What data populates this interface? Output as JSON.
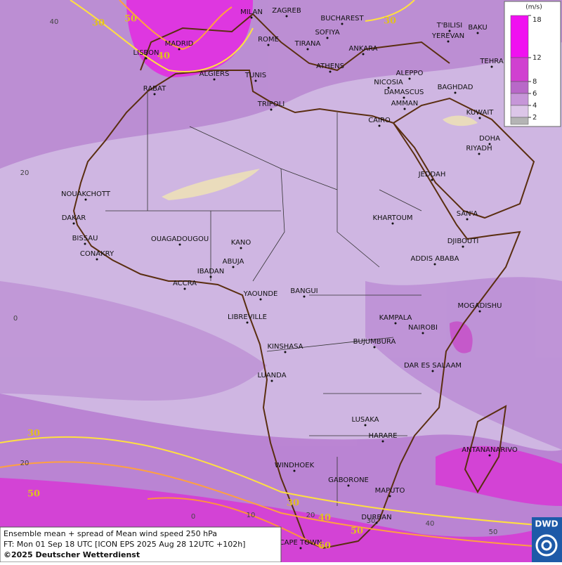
{
  "footer": {
    "line1": "Ensemble mean + spread of Mean wind speed 250 hPa",
    "line2": "FT: Mon 01 Sep 18 UTC [ICON EPS 2025 Aug 28 12UTC +102h]",
    "copyright": "©2025 Deutscher Wetterdienst"
  },
  "logo": "DWD",
  "legend": {
    "unit": "(m/s)",
    "ticks": [
      18,
      12,
      8,
      6,
      4,
      2
    ],
    "colors": [
      "#f010f0",
      "#d040d0",
      "#b868c8",
      "#c696d8",
      "#dcc6e8",
      "#b4b4b4"
    ]
  },
  "cities": [
    "MILAN",
    "ZAGREB",
    "BUCHAREST",
    "T'BILISI",
    "BAKU",
    "SOFIYA",
    "YEREVAN",
    "ROME",
    "TIRANA",
    "ANKARA",
    "MADRID",
    "LISBON",
    "TEHRA",
    "ATHENS",
    "ALGIERS",
    "TUNIS",
    "ALEPPO",
    "NICOSIA",
    "BAGHDAD",
    "RABAT",
    "DAMASCUS",
    "AMMAN",
    "TRIPOLI",
    "KUWAIT",
    "CAIRO",
    "DOHA",
    "RIYADH",
    "JEDDAH",
    "NOUAKCHOTT",
    "SAN'A",
    "KHARTOUM",
    "DAKAR",
    "BISSAU",
    "OUAGADOUGOU",
    "KANO",
    "DJIBOUTI",
    "CONAKRY",
    "ABUJA",
    "ADDIS ABABA",
    "IBADAN",
    "ACCRA",
    "YAOUNDE",
    "BANGUI",
    "MOGADISHU",
    "LIBREVILLE",
    "KAMPALA",
    "NAIROBI",
    "KINSHASA",
    "BUJUMBURA",
    "DAR ES SALAAM",
    "LUANDA",
    "LUSAKA",
    "HARARE",
    "ANTANANARIVO",
    "WINDHOEK",
    "GABORONE",
    "MAPUTO",
    "DURBAN",
    "CAPE TOWN"
  ],
  "contour_labels": [
    30,
    50,
    30,
    40,
    30,
    50,
    30,
    40,
    50,
    60
  ],
  "lat_labels": [
    40,
    20,
    0,
    20
  ],
  "lon_labels": [
    0,
    10,
    20,
    30,
    40,
    50
  ]
}
